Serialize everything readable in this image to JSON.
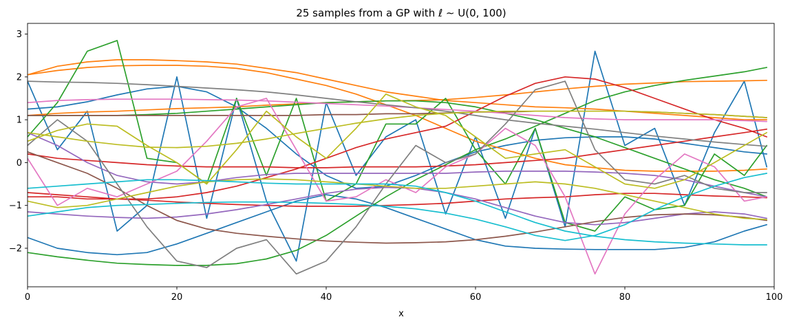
{
  "chart_data": {
    "type": "line",
    "title": "25 samples from a GP with ℓ ∼ U(0, 100)",
    "xlabel": "x",
    "ylabel": "",
    "xlim": [
      0,
      100
    ],
    "ylim": [
      -2.9,
      3.25
    ],
    "grid": false,
    "legend": "none",
    "x_ticks": [
      0,
      20,
      40,
      60,
      80,
      100
    ],
    "x_tick_labels": [
      "0",
      "20",
      "40",
      "60",
      "80",
      "100"
    ],
    "y_ticks": [
      -2,
      -1,
      0,
      1,
      2,
      3
    ],
    "y_tick_labels": [
      "−2",
      "−1",
      "0",
      "1",
      "2",
      "3"
    ],
    "x": [
      0,
      4,
      8,
      12,
      16,
      20,
      24,
      28,
      32,
      36,
      40,
      44,
      48,
      52,
      56,
      60,
      64,
      68,
      72,
      76,
      80,
      84,
      88,
      92,
      96,
      99
    ],
    "series": [
      {
        "color": "#1f77b4",
        "values": [
          1.9,
          0.3,
          1.2,
          -1.6,
          -1.0,
          2.0,
          -1.3,
          1.5,
          -0.9,
          -2.3,
          1.4,
          -0.3,
          0.6,
          1.0,
          -1.2,
          0.6,
          -1.3,
          0.8,
          -1.5,
          2.6,
          0.4,
          0.8,
          -1.0,
          0.7,
          1.9,
          -0.1
        ]
      },
      {
        "color": "#1f77b4",
        "values": [
          1.25,
          1.3,
          1.42,
          1.58,
          1.72,
          1.78,
          1.65,
          1.3,
          0.8,
          0.2,
          -0.3,
          -0.6,
          -0.55,
          -0.3,
          0.0,
          0.25,
          0.4,
          0.52,
          0.58,
          0.6,
          0.6,
          0.55,
          0.45,
          0.35,
          0.25,
          0.2
        ]
      },
      {
        "color": "#1f77b4",
        "values": [
          -1.75,
          -2.0,
          -2.1,
          -2.15,
          -2.1,
          -1.9,
          -1.65,
          -1.4,
          -1.15,
          -0.9,
          -0.75,
          -0.85,
          -1.05,
          -1.3,
          -1.55,
          -1.8,
          -1.95,
          -2.0,
          -2.02,
          -2.03,
          -2.03,
          -2.03,
          -1.98,
          -1.85,
          -1.6,
          -1.45
        ]
      },
      {
        "color": "#ff7f0e",
        "values": [
          2.05,
          2.25,
          2.35,
          2.4,
          2.4,
          2.38,
          2.35,
          2.3,
          2.2,
          2.1,
          1.95,
          1.8,
          1.65,
          1.55,
          1.45,
          1.4,
          1.35,
          1.3,
          1.28,
          1.25,
          1.2,
          1.15,
          1.1,
          1.05,
          1.0,
          1.0
        ]
      },
      {
        "color": "#ff7f0e",
        "values": [
          2.05,
          2.15,
          2.22,
          2.26,
          2.27,
          2.27,
          2.25,
          2.2,
          2.1,
          1.95,
          1.8,
          1.6,
          1.35,
          1.1,
          0.8,
          0.5,
          0.3,
          0.1,
          -0.05,
          -0.12,
          -0.18,
          -0.2,
          -0.2,
          -0.2,
          -0.18,
          -0.15
        ]
      },
      {
        "color": "#ff7f0e",
        "values": [
          1.1,
          1.15,
          1.18,
          1.2,
          1.23,
          1.26,
          1.28,
          1.3,
          1.34,
          1.37,
          1.4,
          1.42,
          1.44,
          1.45,
          1.47,
          1.52,
          1.58,
          1.65,
          1.72,
          1.78,
          1.83,
          1.86,
          1.89,
          1.9,
          1.91,
          1.92
        ]
      },
      {
        "color": "#2ca02c",
        "values": [
          0.6,
          1.4,
          2.6,
          2.85,
          0.1,
          0.0,
          -0.5,
          1.5,
          -0.3,
          1.5,
          -0.9,
          -0.5,
          0.9,
          0.9,
          1.5,
          0.3,
          -0.5,
          0.8,
          -1.4,
          -1.6,
          -0.8,
          -1.1,
          -1.0,
          0.2,
          -0.3,
          0.4
        ]
      },
      {
        "color": "#2ca02c",
        "values": [
          -2.1,
          -2.2,
          -2.28,
          -2.35,
          -2.38,
          -2.4,
          -2.4,
          -2.36,
          -2.25,
          -2.05,
          -1.7,
          -1.25,
          -0.8,
          -0.4,
          -0.05,
          0.3,
          0.55,
          0.85,
          1.15,
          1.45,
          1.65,
          1.8,
          1.92,
          2.02,
          2.12,
          2.22
        ]
      },
      {
        "color": "#2ca02c",
        "values": [
          1.1,
          1.1,
          1.1,
          1.1,
          1.12,
          1.15,
          1.2,
          1.25,
          1.3,
          1.35,
          1.4,
          1.42,
          1.44,
          1.44,
          1.4,
          1.3,
          1.15,
          1.0,
          0.8,
          0.6,
          0.35,
          0.1,
          -0.15,
          -0.4,
          -0.6,
          -0.8
        ]
      },
      {
        "color": "#d62728",
        "values": [
          0.2,
          0.1,
          0.05,
          0.0,
          -0.05,
          -0.08,
          -0.1,
          -0.1,
          -0.1,
          -0.12,
          -0.12,
          -0.1,
          -0.1,
          -0.1,
          -0.08,
          -0.05,
          0.0,
          0.05,
          0.1,
          0.2,
          0.3,
          0.4,
          0.5,
          0.6,
          0.7,
          0.78
        ]
      },
      {
        "color": "#d62728",
        "values": [
          -0.8,
          -0.8,
          -0.85,
          -0.85,
          -0.85,
          -0.8,
          -0.7,
          -0.55,
          -0.35,
          -0.15,
          0.1,
          0.35,
          0.55,
          0.7,
          0.85,
          1.2,
          1.55,
          1.85,
          2.0,
          1.95,
          1.75,
          1.5,
          1.25,
          1.0,
          0.8,
          0.6
        ]
      },
      {
        "color": "#d62728",
        "values": [
          -0.7,
          -0.75,
          -0.8,
          -0.85,
          -0.88,
          -0.92,
          -0.95,
          -0.98,
          -1.0,
          -1.02,
          -1.02,
          -1.02,
          -1.0,
          -0.98,
          -0.95,
          -0.9,
          -0.85,
          -0.82,
          -0.8,
          -0.75,
          -0.72,
          -0.72,
          -0.75,
          -0.78,
          -0.8,
          -0.82
        ]
      },
      {
        "color": "#9467bd",
        "values": [
          0.7,
          0.4,
          0.0,
          -0.3,
          -0.45,
          -0.5,
          -0.45,
          -0.35,
          -0.28,
          -0.25,
          -0.25,
          -0.25,
          -0.25,
          -0.25,
          -0.25,
          -0.22,
          -0.2,
          -0.2,
          -0.2,
          -0.22,
          -0.25,
          -0.3,
          -0.4,
          -0.55,
          -0.7,
          -0.8
        ]
      },
      {
        "color": "#9467bd",
        "values": [
          -1.15,
          -1.2,
          -1.25,
          -1.28,
          -1.3,
          -1.27,
          -1.2,
          -1.1,
          -0.98,
          -0.85,
          -0.72,
          -0.62,
          -0.58,
          -0.6,
          -0.7,
          -0.85,
          -1.05,
          -1.25,
          -1.4,
          -1.45,
          -1.4,
          -1.3,
          -1.2,
          -1.15,
          -1.2,
          -1.3
        ]
      },
      {
        "color": "#8c564b",
        "values": [
          0.25,
          0.0,
          -0.25,
          -0.6,
          -1.0,
          -1.35,
          -1.55,
          -1.65,
          -1.72,
          -1.78,
          -1.83,
          -1.86,
          -1.88,
          -1.87,
          -1.85,
          -1.8,
          -1.72,
          -1.62,
          -1.5,
          -1.38,
          -1.28,
          -1.22,
          -1.2,
          -1.22,
          -1.28,
          -1.35
        ]
      },
      {
        "color": "#8c564b",
        "values": [
          1.1,
          1.1,
          1.1,
          1.1,
          1.1,
          1.1,
          1.1,
          1.1,
          1.1,
          1.1,
          1.12,
          1.12,
          1.14,
          1.14,
          1.16,
          1.18,
          1.18,
          1.2,
          1.2,
          1.2,
          1.2,
          1.18,
          1.15,
          1.12,
          1.08,
          1.05
        ]
      },
      {
        "color": "#e377c2",
        "values": [
          0.1,
          -1.0,
          -0.6,
          -0.8,
          -0.5,
          -0.2,
          0.5,
          1.3,
          1.5,
          0.3,
          -0.9,
          -0.8,
          -0.4,
          -0.7,
          -0.1,
          0.2,
          0.8,
          0.4,
          -0.8,
          -2.6,
          -1.2,
          -0.4,
          0.2,
          -0.1,
          -0.9,
          -0.8
        ]
      },
      {
        "color": "#e377c2",
        "values": [
          1.4,
          1.45,
          1.47,
          1.48,
          1.48,
          1.48,
          1.47,
          1.46,
          1.44,
          1.41,
          1.38,
          1.35,
          1.32,
          1.28,
          1.24,
          1.2,
          1.15,
          1.1,
          1.05,
          1.02,
          1.0,
          1.0,
          1.0,
          1.0,
          0.98,
          0.96
        ]
      },
      {
        "color": "#7f7f7f",
        "values": [
          0.4,
          1.0,
          0.5,
          -0.5,
          -1.5,
          -2.3,
          -2.45,
          -2.0,
          -1.8,
          -2.6,
          -2.3,
          -1.5,
          -0.5,
          0.4,
          0.0,
          0.2,
          0.9,
          1.7,
          1.9,
          0.3,
          -0.4,
          -0.5,
          -0.3,
          -0.6,
          -0.7,
          -0.7
        ]
      },
      {
        "color": "#7f7f7f",
        "values": [
          1.9,
          1.88,
          1.87,
          1.85,
          1.82,
          1.78,
          1.74,
          1.7,
          1.65,
          1.58,
          1.5,
          1.42,
          1.35,
          1.28,
          1.2,
          1.1,
          1.0,
          0.92,
          0.85,
          0.78,
          0.7,
          0.62,
          0.55,
          0.48,
          0.42,
          0.38
        ]
      },
      {
        "color": "#bcbd22",
        "values": [
          0.5,
          0.75,
          0.9,
          0.85,
          0.4,
          0.0,
          -0.5,
          0.3,
          1.2,
          0.6,
          0.1,
          0.8,
          1.6,
          1.3,
          1.1,
          0.6,
          0.1,
          0.2,
          0.3,
          -0.1,
          -0.5,
          -0.6,
          -0.4,
          0.0,
          0.4,
          0.7
        ]
      },
      {
        "color": "#bcbd22",
        "values": [
          -0.9,
          -1.05,
          -1.0,
          -0.85,
          -0.7,
          -0.55,
          -0.45,
          -0.4,
          -0.38,
          -0.4,
          -0.45,
          -0.5,
          -0.55,
          -0.6,
          -0.6,
          -0.55,
          -0.5,
          -0.45,
          -0.5,
          -0.6,
          -0.75,
          -0.9,
          -1.05,
          -1.2,
          -1.3,
          -1.33
        ]
      },
      {
        "color": "#bcbd22",
        "values": [
          0.7,
          0.6,
          0.5,
          0.42,
          0.36,
          0.35,
          0.38,
          0.45,
          0.55,
          0.68,
          0.8,
          0.92,
          1.02,
          1.1,
          1.15,
          1.18,
          1.2,
          1.2,
          1.2,
          1.2,
          1.2,
          1.18,
          1.15,
          1.12,
          1.08,
          1.05
        ]
      },
      {
        "color": "#17becf",
        "values": [
          -0.6,
          -0.55,
          -0.5,
          -0.45,
          -0.4,
          -0.4,
          -0.42,
          -0.45,
          -0.48,
          -0.5,
          -0.5,
          -0.5,
          -0.5,
          -0.55,
          -0.7,
          -0.9,
          -1.15,
          -1.4,
          -1.6,
          -1.72,
          -1.8,
          -1.85,
          -1.88,
          -1.9,
          -1.92,
          -1.92
        ]
      },
      {
        "color": "#17becf",
        "values": [
          -1.25,
          -1.15,
          -1.05,
          -1.0,
          -0.98,
          -0.95,
          -0.93,
          -0.92,
          -0.92,
          -0.93,
          -0.95,
          -0.98,
          -1.02,
          -1.08,
          -1.18,
          -1.32,
          -1.5,
          -1.7,
          -1.82,
          -1.7,
          -1.45,
          -1.1,
          -0.8,
          -0.55,
          -0.35,
          -0.25
        ]
      }
    ]
  }
}
